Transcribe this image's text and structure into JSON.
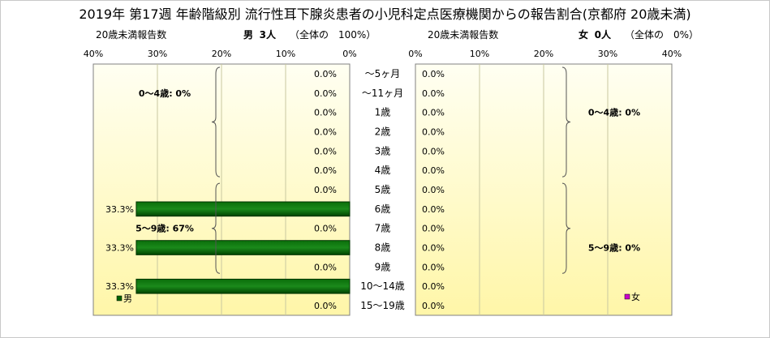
{
  "title": "2019年 第17週 年齢階級別 流行性耳下腺炎患者の小児科定点医療機関からの報告割合(京都府 20歳未満)",
  "left_header": {
    "label": "20歳未満報告数",
    "sex": "男",
    "count": "3人",
    "share": "（全体の　100%）"
  },
  "right_header": {
    "label": "20歳未満報告数",
    "sex": "女",
    "count": "0人",
    "share": "（全体の　0%）"
  },
  "chart_data": {
    "type": "bar",
    "orientation": "horizontal",
    "layout": "back-to-back (population pyramid)",
    "categories": [
      "～5ヶ月",
      "～11ヶ月",
      "1歳",
      "2歳",
      "3歳",
      "4歳",
      "5歳",
      "6歳",
      "7歳",
      "8歳",
      "9歳",
      "10～14歳",
      "15～19歳"
    ],
    "x_ticks": [
      "40%",
      "30%",
      "20%",
      "10%",
      "0%"
    ],
    "x_ticks_right": [
      "0%",
      "10%",
      "20%",
      "30%",
      "40%"
    ],
    "xlim": [
      0,
      40
    ],
    "series": [
      {
        "name": "男",
        "color": "#006400",
        "values": [
          0,
          0,
          0,
          0,
          0,
          0,
          0,
          33.3,
          0,
          33.3,
          0,
          33.3,
          0
        ],
        "labels": [
          "0.0%",
          "0.0%",
          "0.0%",
          "0.0%",
          "0.0%",
          "0.0%",
          "0.0%",
          "33.3%",
          "0.0%",
          "33.3%",
          "0.0%",
          "33.3%",
          "0.0%"
        ]
      },
      {
        "name": "女",
        "color": "#cc00cc",
        "values": [
          0,
          0,
          0,
          0,
          0,
          0,
          0,
          0,
          0,
          0,
          0,
          0,
          0
        ],
        "labels": [
          "0.0%",
          "0.0%",
          "0.0%",
          "0.0%",
          "0.0%",
          "0.0%",
          "0.0%",
          "0.0%",
          "0.0%",
          "0.0%",
          "0.0%",
          "0.0%",
          "0.0%"
        ]
      }
    ],
    "group_labels_left": [
      "0～4歳: 0%",
      "5～9歳: 67%"
    ],
    "group_labels_right": [
      "0～4歳: 0%",
      "5～9歳: 0%"
    ],
    "plot_background": "#ffffd0",
    "grid": true,
    "legend": {
      "left": "男",
      "right": "女"
    }
  }
}
